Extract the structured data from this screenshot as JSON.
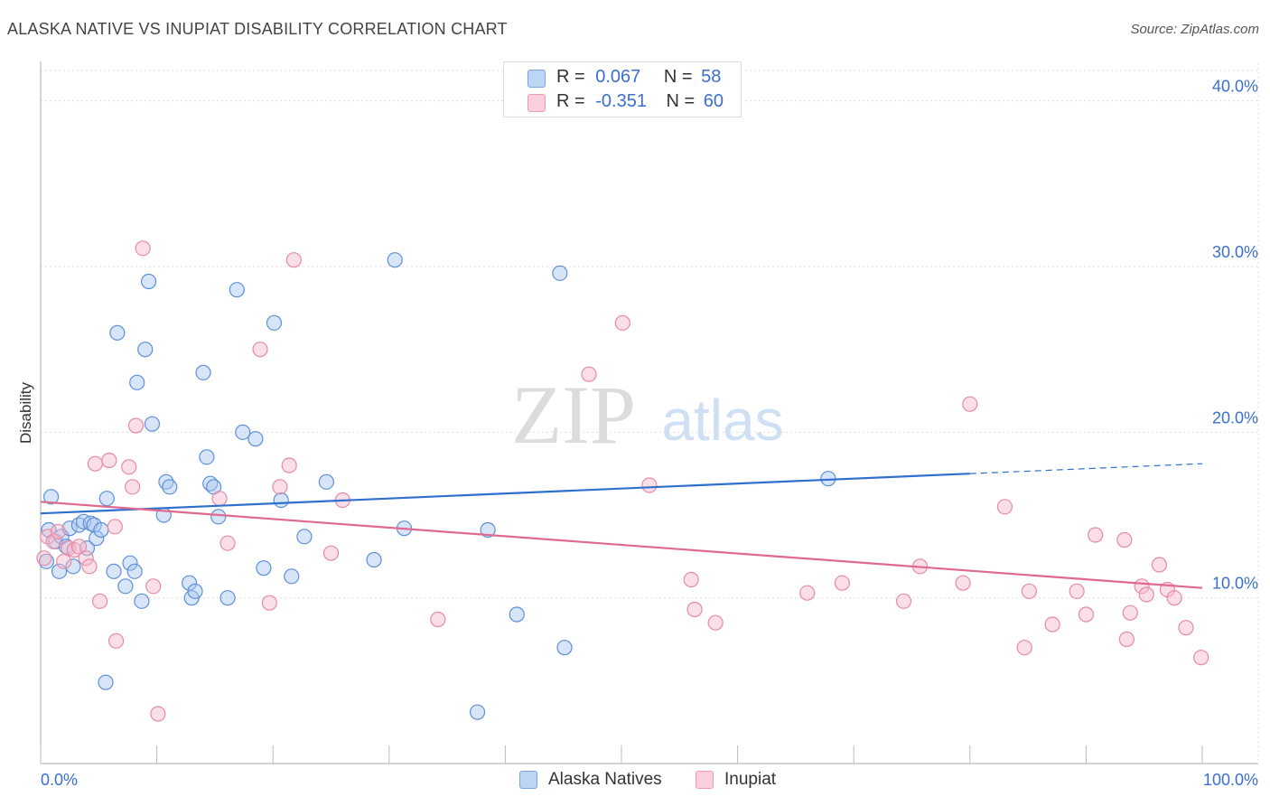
{
  "header": {
    "title": "ALASKA NATIVE VS INUPIAT DISABILITY CORRELATION CHART",
    "source": "Source: ZipAtlas.com"
  },
  "legend": {
    "rows": [
      {
        "r_label": "R =",
        "r_value": "0.067",
        "n_label": "N =",
        "n_value": "58",
        "color": "#a9c6f0"
      },
      {
        "r_label": "R =",
        "r_value": "-0.351",
        "n_label": "N =",
        "n_value": "60",
        "color": "#f7b9cc"
      }
    ],
    "series_labels": [
      "Alaska Natives",
      "Inupiat"
    ]
  },
  "watermark": {
    "zip": "ZIP",
    "atlas": "atlas"
  },
  "chart_data": {
    "type": "scatter",
    "title": "ALASKA NATIVE VS INUPIAT DISABILITY CORRELATION CHART",
    "ylabel": "Disability",
    "xlabel": "",
    "xlim": [
      0,
      100
    ],
    "ylim": [
      0,
      42
    ],
    "x_tick_labels": [
      "0.0%",
      "100.0%"
    ],
    "y_ticks": [
      10,
      20,
      30,
      40
    ],
    "y_tick_labels": [
      "10.0%",
      "20.0%",
      "30.0%",
      "40.0%"
    ],
    "grid": true,
    "legend_position": "top-center",
    "series": [
      {
        "name": "Alaska Natives",
        "color": "#a9c6f0",
        "stroke": "#5b8fd8",
        "trend_color": "#2f6fce",
        "trend": {
          "x0": 0,
          "y0": 15.1,
          "x1": 80,
          "y1": 17.5,
          "dashed_to_x": 100,
          "dashed_to_y": 18.1
        },
        "points": [
          [
            0.5,
            12.2
          ],
          [
            0.7,
            14.1
          ],
          [
            0.9,
            16.1
          ],
          [
            1.3,
            13.4
          ],
          [
            1.6,
            11.6
          ],
          [
            1.8,
            13.7
          ],
          [
            2.2,
            13.1
          ],
          [
            2.5,
            14.2
          ],
          [
            2.8,
            11.9
          ],
          [
            3.3,
            14.4
          ],
          [
            3.7,
            14.6
          ],
          [
            4.0,
            13.0
          ],
          [
            4.3,
            14.5
          ],
          [
            4.6,
            14.4
          ],
          [
            4.8,
            13.6
          ],
          [
            5.2,
            14.1
          ],
          [
            5.7,
            16.0
          ],
          [
            5.6,
            4.9
          ],
          [
            6.3,
            11.6
          ],
          [
            6.6,
            26.0
          ],
          [
            7.3,
            10.7
          ],
          [
            7.7,
            12.1
          ],
          [
            8.1,
            11.6
          ],
          [
            8.3,
            23.0
          ],
          [
            8.7,
            9.8
          ],
          [
            9.0,
            25.0
          ],
          [
            9.3,
            29.1
          ],
          [
            9.6,
            20.5
          ],
          [
            10.6,
            15.0
          ],
          [
            10.8,
            17.0
          ],
          [
            11.1,
            16.7
          ],
          [
            12.8,
            10.9
          ],
          [
            13.0,
            10.0
          ],
          [
            13.3,
            10.4
          ],
          [
            14.0,
            23.6
          ],
          [
            14.3,
            18.5
          ],
          [
            14.6,
            16.9
          ],
          [
            14.9,
            16.7
          ],
          [
            15.3,
            14.9
          ],
          [
            16.1,
            10.0
          ],
          [
            16.9,
            28.6
          ],
          [
            17.4,
            20.0
          ],
          [
            18.5,
            19.6
          ],
          [
            19.2,
            11.8
          ],
          [
            20.1,
            26.6
          ],
          [
            20.7,
            15.9
          ],
          [
            21.6,
            11.3
          ],
          [
            22.7,
            13.7
          ],
          [
            24.6,
            17.0
          ],
          [
            28.7,
            12.3
          ],
          [
            30.5,
            30.4
          ],
          [
            31.3,
            14.2
          ],
          [
            37.6,
            3.1
          ],
          [
            38.5,
            14.1
          ],
          [
            41.0,
            9.0
          ],
          [
            44.7,
            29.6
          ],
          [
            45.1,
            7.0
          ],
          [
            67.8,
            17.2
          ]
        ]
      },
      {
        "name": "Inupiat",
        "color": "#f7b9cc",
        "stroke": "#e889a6",
        "trend_color": "#e0698f",
        "trend": {
          "x0": 0,
          "y0": 15.8,
          "x1": 100,
          "y1": 10.6
        },
        "points": [
          [
            0.3,
            12.4
          ],
          [
            0.6,
            13.7
          ],
          [
            1.1,
            13.4
          ],
          [
            1.5,
            14.0
          ],
          [
            2.0,
            12.2
          ],
          [
            2.4,
            13.0
          ],
          [
            2.9,
            12.9
          ],
          [
            3.3,
            13.1
          ],
          [
            3.9,
            12.4
          ],
          [
            4.2,
            11.9
          ],
          [
            4.7,
            18.1
          ],
          [
            5.1,
            9.8
          ],
          [
            5.9,
            18.3
          ],
          [
            6.4,
            14.3
          ],
          [
            6.5,
            7.4
          ],
          [
            7.6,
            17.9
          ],
          [
            7.9,
            16.7
          ],
          [
            8.2,
            20.4
          ],
          [
            8.8,
            31.1
          ],
          [
            9.7,
            10.7
          ],
          [
            10.1,
            3.0
          ],
          [
            15.4,
            16.0
          ],
          [
            16.1,
            13.3
          ],
          [
            18.9,
            25.0
          ],
          [
            19.7,
            9.7
          ],
          [
            20.6,
            16.7
          ],
          [
            21.4,
            18.0
          ],
          [
            21.8,
            30.4
          ],
          [
            25.0,
            12.7
          ],
          [
            26.0,
            15.9
          ],
          [
            34.2,
            8.7
          ],
          [
            47.2,
            23.5
          ],
          [
            50.1,
            26.6
          ],
          [
            52.4,
            16.8
          ],
          [
            56.0,
            11.1
          ],
          [
            56.3,
            9.3
          ],
          [
            58.1,
            8.5
          ],
          [
            66.0,
            10.3
          ],
          [
            69.0,
            10.9
          ],
          [
            74.3,
            9.8
          ],
          [
            75.7,
            11.9
          ],
          [
            79.4,
            10.9
          ],
          [
            80.0,
            21.7
          ],
          [
            83.0,
            15.5
          ],
          [
            84.7,
            7.0
          ],
          [
            85.1,
            10.4
          ],
          [
            87.1,
            8.4
          ],
          [
            89.2,
            10.4
          ],
          [
            90.0,
            9.0
          ],
          [
            90.8,
            13.8
          ],
          [
            93.3,
            13.5
          ],
          [
            93.5,
            7.5
          ],
          [
            93.8,
            9.1
          ],
          [
            94.8,
            10.7
          ],
          [
            95.2,
            10.2
          ],
          [
            96.3,
            12.0
          ],
          [
            97.0,
            10.5
          ],
          [
            97.6,
            10.0
          ],
          [
            98.6,
            8.2
          ],
          [
            99.9,
            6.4
          ]
        ]
      }
    ]
  }
}
